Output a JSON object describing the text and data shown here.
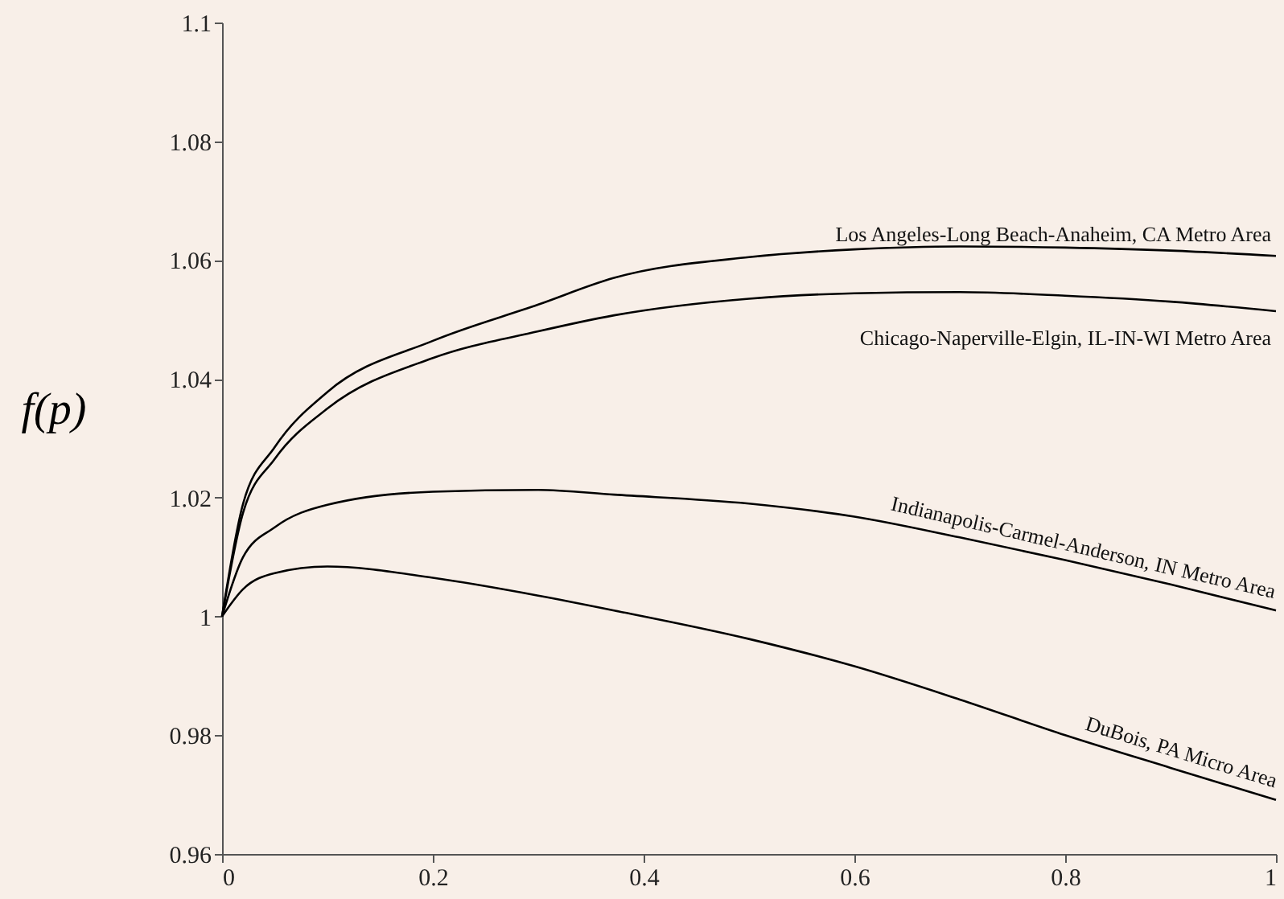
{
  "chart_data": {
    "type": "line",
    "ylabel": "f(p)",
    "x": [
      0,
      0.02,
      0.05,
      0.1,
      0.2,
      0.3,
      0.372,
      0.5,
      0.6,
      0.7,
      0.8,
      0.9,
      1
    ],
    "series": [
      {
        "name": "Los Angeles-Long Beach-Anaheim, CA Metro Area",
        "color": "#000000",
        "values": [
          1.0,
          1.019,
          1.0285,
          1.0378,
          1.0464,
          1.0525,
          1.057,
          1.0605,
          1.0618,
          1.0623,
          1.0621,
          1.0616,
          1.0607
        ]
      },
      {
        "name": "Chicago-Naperville-Elgin, IL-IN-WI Metro Area",
        "color": "#000000",
        "values": [
          1.0,
          1.0175,
          1.0265,
          1.035,
          1.0435,
          1.048,
          1.0507,
          1.0535,
          1.0544,
          1.0546,
          1.054,
          1.053,
          1.0514
        ]
      },
      {
        "name": "Indianapolis-Carmel-Anderson, IN Metro Area",
        "color": "#000000",
        "values": [
          1.0,
          1.01,
          1.015,
          1.0188,
          1.021,
          1.0213,
          1.0205,
          1.019,
          1.0168,
          1.0133,
          1.0095,
          1.0054,
          1.001
        ]
      },
      {
        "name": "DuBois, PA Micro Area",
        "color": "#000000",
        "values": [
          1.0,
          1.0046,
          1.0073,
          1.0084,
          1.0065,
          1.0035,
          1.001,
          0.9962,
          0.9916,
          0.986,
          0.98,
          0.9745,
          0.9691
        ]
      }
    ],
    "xlim": [
      0,
      1
    ],
    "xticks": [
      0,
      0.2,
      0.4,
      0.6,
      0.8,
      1
    ],
    "ylim": [
      0.96,
      1.1
    ],
    "yticks": [
      0.96,
      0.98,
      1,
      1.02,
      1.04,
      1.06,
      1.08,
      1.1
    ],
    "grid": false,
    "line_style": "solid",
    "marker": "none"
  }
}
